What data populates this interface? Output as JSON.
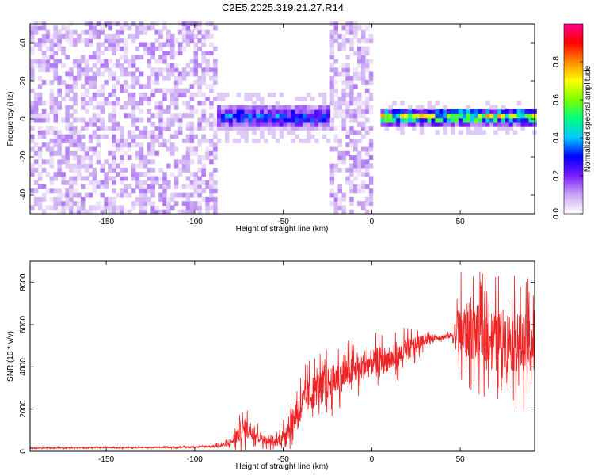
{
  "title": "C2E5.2025.319.21.27.R14",
  "colors": {
    "snr_line": "#ee2222",
    "axis": "#000000",
    "background": "#ffffff"
  },
  "chart_data": [
    {
      "type": "heatmap",
      "title": "C2E5.2025.319.21.27.R14",
      "xlabel": "Height of straight line (km)",
      "ylabel": "Frequency (Hz)",
      "xlim": [
        -193,
        92
      ],
      "ylim": [
        -50,
        50
      ],
      "xticks": [
        -150,
        -100,
        -50,
        0,
        50
      ],
      "yticks": [
        -40,
        -20,
        0,
        20,
        40
      ],
      "colorbar": {
        "label": "Normalized spectral amplitude",
        "range": [
          0,
          1
        ],
        "ticks": [
          0.0,
          0.2,
          0.4,
          0.6,
          0.8
        ],
        "tick_labels": [
          "0.0",
          "0.2",
          "0.4",
          "0.6",
          "0.8"
        ],
        "colormap": [
          "#ffffff",
          "#c9a6f2",
          "#7a1bff",
          "#0000ff",
          "#00c8ff",
          "#00ff80",
          "#7cff00",
          "#ffff00",
          "#ff8800",
          "#ff0000",
          "#ff0090"
        ]
      },
      "regions": [
        {
          "x_range": [
            -193,
            -88
          ],
          "freq_range": [
            -50,
            50
          ],
          "amplitude": 0.08,
          "description_type": "broadband_noise"
        },
        {
          "x_range": [
            -88,
            -25
          ],
          "freq_center": 0,
          "freq_halfwidth": 6,
          "amplitude": 0.3
        },
        {
          "x_range": [
            -25,
            -1
          ],
          "freq_range": [
            -50,
            50
          ],
          "amplitude": 0.08
        },
        {
          "x_range": [
            3,
            92
          ],
          "freq_center": 0,
          "freq_halfwidth": 4,
          "amplitude": 0.6
        }
      ]
    },
    {
      "type": "line",
      "xlabel": "Height of straight line (km)",
      "ylabel": "SNR (10 * v/v)",
      "xlim": [
        -193,
        92
      ],
      "ylim": [
        0,
        9000
      ],
      "xticks": [
        -150,
        -100,
        -50,
        0,
        50
      ],
      "yticks": [
        0,
        2000,
        4000,
        6000,
        8000
      ],
      "series": [
        {
          "x": [
            -193,
            -170,
            -150,
            -130,
            -110,
            -90,
            -80,
            -75,
            -70,
            -65,
            -60,
            -55,
            -50,
            -45,
            -40,
            -35,
            -30,
            -25,
            -20,
            -15,
            -10,
            -5,
            0,
            5,
            10,
            15,
            20,
            25,
            30,
            35,
            40,
            45,
            50,
            55,
            60,
            65,
            70,
            75,
            80,
            85,
            92
          ],
          "y": [
            150,
            170,
            180,
            180,
            190,
            230,
            350,
            900,
            1100,
            800,
            500,
            400,
            700,
            1400,
            2200,
            2700,
            3000,
            3200,
            3400,
            3700,
            3800,
            4000,
            4200,
            4400,
            4300,
            4500,
            4800,
            5000,
            5300,
            5400,
            5400,
            5500,
            5600,
            5700,
            5600,
            5500,
            5400,
            5300,
            5200,
            5100,
            5000
          ],
          "spread": [
            50,
            60,
            60,
            60,
            60,
            80,
            300,
            1100,
            1000,
            700,
            400,
            400,
            800,
            1300,
            1600,
            1800,
            1700,
            1700,
            1700,
            1600,
            1500,
            1400,
            1400,
            1300,
            1300,
            1200,
            1200,
            900,
            500,
            300,
            300,
            300,
            3000,
            3000,
            3000,
            3000,
            3000,
            3200,
            3200,
            3200,
            3200
          ]
        }
      ]
    }
  ]
}
